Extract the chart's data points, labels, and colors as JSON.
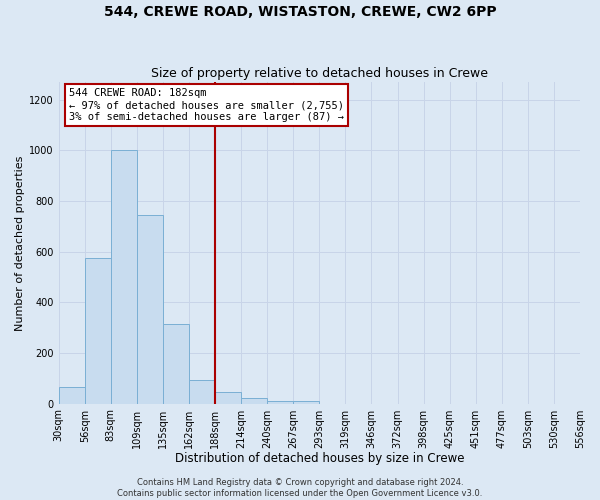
{
  "title": "544, CREWE ROAD, WISTASTON, CREWE, CW2 6PP",
  "subtitle": "Size of property relative to detached houses in Crewe",
  "xlabel": "Distribution of detached houses by size in Crewe",
  "ylabel": "Number of detached properties",
  "bar_values": [
    65,
    575,
    1000,
    745,
    315,
    95,
    45,
    22,
    10,
    10,
    0,
    0,
    0,
    0,
    0,
    0,
    0,
    0,
    0,
    0
  ],
  "bin_labels": [
    "30sqm",
    "56sqm",
    "83sqm",
    "109sqm",
    "135sqm",
    "162sqm",
    "188sqm",
    "214sqm",
    "240sqm",
    "267sqm",
    "293sqm",
    "319sqm",
    "346sqm",
    "372sqm",
    "398sqm",
    "425sqm",
    "451sqm",
    "477sqm",
    "503sqm",
    "530sqm",
    "556sqm"
  ],
  "bar_color": "#c8dcef",
  "bar_edge_color": "#7aafd4",
  "vline_x": 6,
  "vline_color": "#aa0000",
  "annotation_line1": "544 CREWE ROAD: 182sqm",
  "annotation_line2": "← 97% of detached houses are smaller (2,755)",
  "annotation_line3": "3% of semi-detached houses are larger (87) →",
  "annotation_box_color": "#ffffff",
  "annotation_box_edge_color": "#aa0000",
  "ylim": [
    0,
    1270
  ],
  "yticks": [
    0,
    200,
    400,
    600,
    800,
    1000,
    1200
  ],
  "grid_color": "#c8d4e8",
  "bg_color": "#dce8f4",
  "footer_line1": "Contains HM Land Registry data © Crown copyright and database right 2024.",
  "footer_line2": "Contains public sector information licensed under the Open Government Licence v3.0.",
  "title_fontsize": 10,
  "subtitle_fontsize": 9,
  "xlabel_fontsize": 8.5,
  "ylabel_fontsize": 8,
  "tick_fontsize": 7,
  "footer_fontsize": 6,
  "annotation_fontsize": 7.5
}
